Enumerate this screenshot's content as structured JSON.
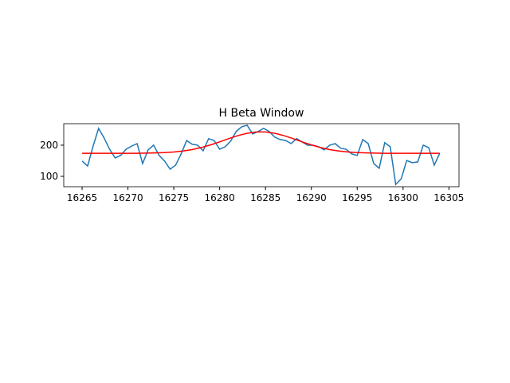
{
  "chart_data": {
    "type": "line",
    "title": "H Beta Window",
    "xlim": [
      16263,
      16306.1
    ],
    "ylim": [
      66.7,
      269
    ],
    "xticks": [
      16265,
      16270,
      16275,
      16280,
      16285,
      16290,
      16295,
      16300,
      16305
    ],
    "yticks": [
      100,
      200
    ],
    "series": [
      {
        "color": "#1f77b4",
        "x": [
          16265,
          16265.6,
          16266.2,
          16266.8,
          16267.4,
          16268,
          16268.6,
          16269.2,
          16269.8,
          16270.4,
          16271,
          16271.6,
          16272.2,
          16272.8,
          16273.4,
          16274,
          16274.6,
          16275.2,
          16275.8,
          16276.4,
          16277,
          16277.6,
          16278.2,
          16278.8,
          16279.4,
          16280,
          16280.6,
          16281.2,
          16281.8,
          16282.4,
          16283,
          16283.6,
          16284.2,
          16284.8,
          16285.4,
          16286,
          16286.6,
          16287.2,
          16287.8,
          16288.4,
          16289,
          16289.6,
          16290.2,
          16290.8,
          16291.4,
          16292,
          16292.6,
          16293.2,
          16293.8,
          16294.4,
          16295,
          16295.6,
          16296.2,
          16296.8,
          16297.4,
          16298,
          16298.6,
          16299.2,
          16299.8,
          16300.4,
          16301,
          16301.6,
          16302.2,
          16302.8,
          16303.4,
          16304
        ],
        "values": [
          149,
          133,
          197,
          254,
          223,
          187,
          159,
          167,
          187,
          197,
          205,
          141,
          185,
          200,
          167,
          149,
          123,
          136,
          172,
          215,
          203,
          200,
          182,
          221,
          215,
          187,
          195,
          213,
          244,
          259,
          264,
          236,
          244,
          254,
          244,
          226,
          218,
          215,
          205,
          221,
          210,
          200,
          200,
          195,
          185,
          200,
          205,
          190,
          187,
          172,
          167,
          218,
          205,
          141,
          126,
          208,
          195,
          74,
          92,
          151,
          144,
          146,
          200,
          192,
          136,
          174
        ]
      },
      {
        "color": "#ff0000",
        "x": [
          16265,
          16266,
          16267,
          16268,
          16269,
          16270,
          16271,
          16272,
          16273,
          16274,
          16275,
          16276,
          16277,
          16278,
          16279,
          16280,
          16281,
          16282,
          16283,
          16284,
          16285,
          16286,
          16287,
          16288,
          16289,
          16290,
          16291,
          16292,
          16293,
          16294,
          16295,
          16296,
          16297,
          16298,
          16299,
          16300,
          16301,
          16302,
          16303,
          16304
        ],
        "values": [
          174,
          174,
          174,
          174,
          174,
          174,
          174,
          174.5,
          175.1,
          176.2,
          178.1,
          181.2,
          185.9,
          192.4,
          200.8,
          210.6,
          221.1,
          230.8,
          238.3,
          242.5,
          242.5,
          238.3,
          230.8,
          221.1,
          210.6,
          200.8,
          192.4,
          185.9,
          181.2,
          178.1,
          176.2,
          175.1,
          174.5,
          174,
          174,
          174,
          174,
          174,
          174,
          174
        ]
      }
    ]
  }
}
